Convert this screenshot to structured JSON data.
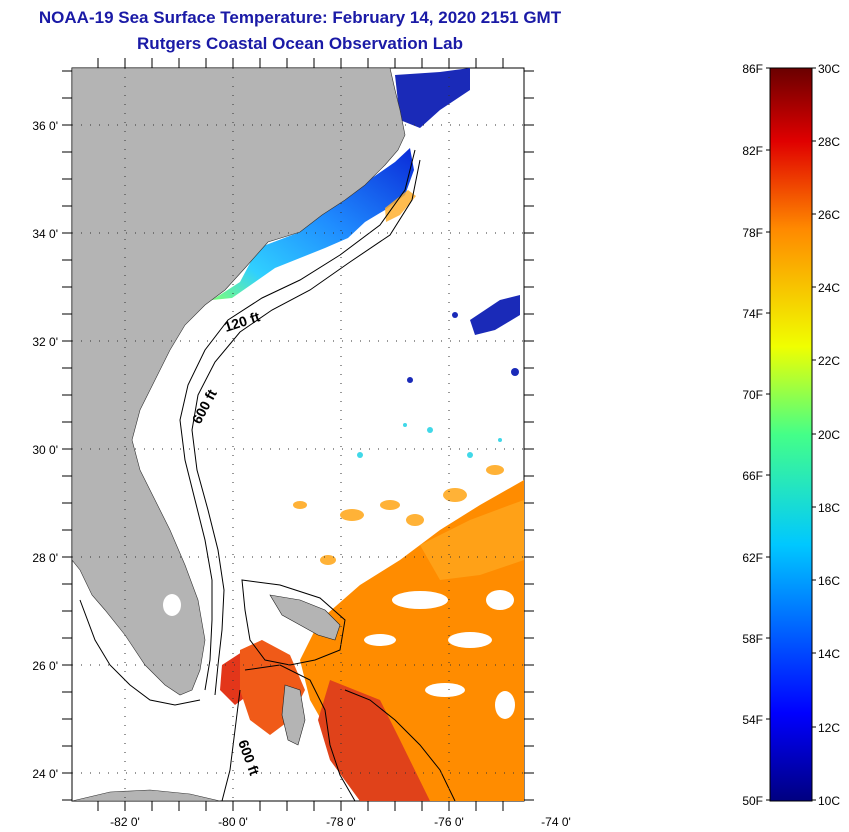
{
  "header": {
    "title": "NOAA-19 Sea Surface Temperature:  February 14, 2020 2151 GMT",
    "subtitle": "Rutgers Coastal Ocean Observation Lab"
  },
  "map": {
    "lat_labels": [
      "36 0'",
      "34 0'",
      "32 0'",
      "30 0'",
      "28 0'",
      "26 0'",
      "24 0'"
    ],
    "lon_labels": [
      "-82 0'",
      "-80 0'",
      "-78 0'",
      "-76 0'",
      "-74 0'"
    ],
    "contours": [
      {
        "text": "120 ft"
      },
      {
        "text": "600 ft"
      },
      {
        "text": "600 ft"
      }
    ]
  },
  "colorbar": {
    "fahrenheit": [
      "86F",
      "82F",
      "78F",
      "74F",
      "70F",
      "66F",
      "62F",
      "58F",
      "54F",
      "50F"
    ],
    "celsius": [
      "30C",
      "28C",
      "26C",
      "24C",
      "22C",
      "20C",
      "18C",
      "16C",
      "14C",
      "12C",
      "10C"
    ]
  },
  "colors": {
    "title": "#1a1aa6",
    "land": "#b4b4b4",
    "cold": "#1030d0",
    "warm": "#ff7a00",
    "hot": "#d82a10"
  }
}
